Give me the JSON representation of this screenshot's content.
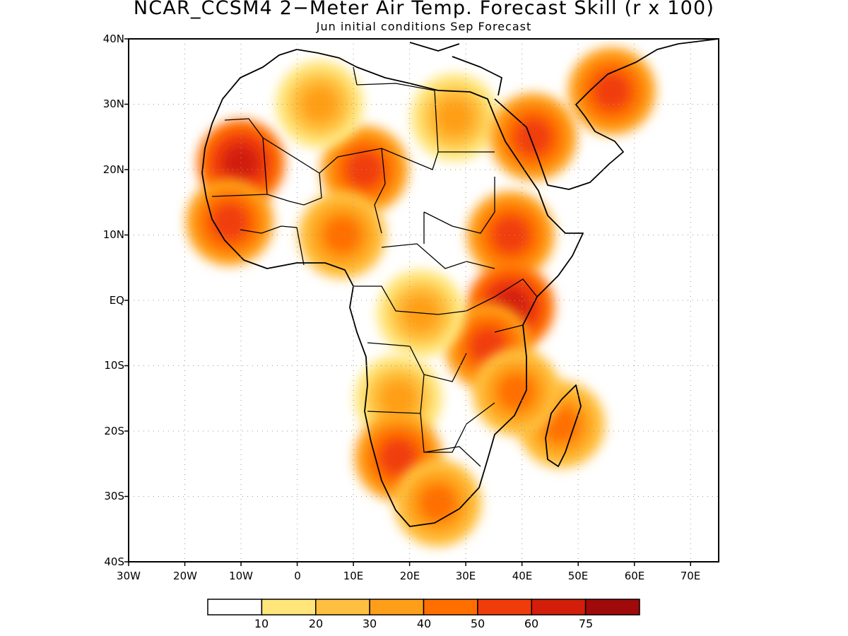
{
  "title": "NCAR_CCSM4 2−Meter Air Temp. Forecast Skill (r x 100)",
  "subtitle": "Jun initial conditions  Sep Forecast",
  "map": {
    "lat_range": [
      -40,
      40
    ],
    "lon_range": [
      -30,
      75
    ],
    "grid": "dotted",
    "y_ticks": [
      "40N",
      "30N",
      "20N",
      "10N",
      "EQ",
      "10S",
      "20S",
      "30S",
      "40S"
    ],
    "x_ticks": [
      "30W",
      "20W",
      "10W",
      "0",
      "10E",
      "20E",
      "30E",
      "40E",
      "50E",
      "60E",
      "70E"
    ]
  },
  "colorbar": {
    "colors": [
      "#ffffff",
      "#ffe57a",
      "#ffbf40",
      "#ff9f19",
      "#ff6f00",
      "#f03c0a",
      "#d21e0a",
      "#a00a0a"
    ],
    "labels": [
      "10",
      "20",
      "30",
      "40",
      "50",
      "60",
      "75"
    ]
  },
  "skill_regions": [
    {
      "name": "w-sahara",
      "lon": -10,
      "lat": 21,
      "level": 6
    },
    {
      "name": "sahel-niger-chad",
      "lon": 12,
      "lat": 20,
      "level": 5
    },
    {
      "name": "n-africa",
      "lon": 4,
      "lat": 30,
      "level": 3
    },
    {
      "name": "senegal-guinea",
      "lon": -12,
      "lat": 12,
      "level": 5
    },
    {
      "name": "nigeria",
      "lon": 8,
      "lat": 10,
      "level": 4
    },
    {
      "name": "egypt",
      "lon": 28,
      "lat": 28,
      "level": 3
    },
    {
      "name": "arabia",
      "lon": 42,
      "lat": 25,
      "level": 5
    },
    {
      "name": "iran",
      "lon": 56,
      "lat": 32,
      "level": 5
    },
    {
      "name": "ethiopia",
      "lon": 38,
      "lat": 10,
      "level": 5
    },
    {
      "name": "kenya",
      "lon": 38,
      "lat": -1,
      "level": 6
    },
    {
      "name": "tanzania",
      "lon": 34,
      "lat": -7,
      "level": 5
    },
    {
      "name": "congo",
      "lon": 22,
      "lat": -2,
      "level": 3
    },
    {
      "name": "angola",
      "lon": 18,
      "lat": -15,
      "level": 3
    },
    {
      "name": "namibia",
      "lon": 18,
      "lat": -24,
      "level": 5
    },
    {
      "name": "south-africa",
      "lon": 25,
      "lat": -31,
      "level": 4
    },
    {
      "name": "madagascar",
      "lon": 47,
      "lat": -19,
      "level": 4
    },
    {
      "name": "mozambique",
      "lon": 39,
      "lat": -14,
      "level": 4
    }
  ]
}
